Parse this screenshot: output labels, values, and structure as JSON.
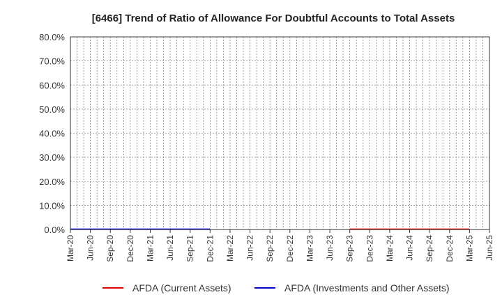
{
  "chart_data": {
    "type": "line",
    "title": "[6466]  Trend of Ratio of Allowance For Doubtful Accounts to Total Assets",
    "xlabel": "",
    "ylabel": "",
    "ylim": [
      0,
      80
    ],
    "yticks": [
      "0.0%",
      "10.0%",
      "20.0%",
      "30.0%",
      "40.0%",
      "50.0%",
      "60.0%",
      "70.0%",
      "80.0%"
    ],
    "categories": [
      "Mar-20",
      "Jun-20",
      "Sep-20",
      "Dec-20",
      "Mar-21",
      "Jun-21",
      "Sep-21",
      "Dec-21",
      "Mar-22",
      "Jun-22",
      "Sep-22",
      "Dec-22",
      "Mar-23",
      "Jun-23",
      "Sep-23",
      "Dec-23",
      "Mar-24",
      "Jun-24",
      "Sep-24",
      "Dec-24",
      "Mar-25",
      "Jun-25"
    ],
    "grid": true,
    "legend_position": "bottom",
    "series": [
      {
        "name": "AFDA (Current Assets)",
        "color": "#e00000",
        "values": [
          null,
          null,
          null,
          null,
          null,
          null,
          null,
          null,
          null,
          null,
          null,
          null,
          null,
          null,
          0.1,
          0.1,
          0.1,
          0.1,
          0.1,
          0.1,
          0.1,
          null
        ]
      },
      {
        "name": "AFDA (Investments and Other Assets)",
        "color": "#0000cc",
        "values": [
          0.1,
          0.1,
          0.1,
          0.1,
          0.1,
          0.1,
          0.1,
          0.1,
          null,
          null,
          null,
          null,
          null,
          null,
          null,
          null,
          null,
          null,
          null,
          null,
          null,
          null
        ]
      }
    ]
  }
}
